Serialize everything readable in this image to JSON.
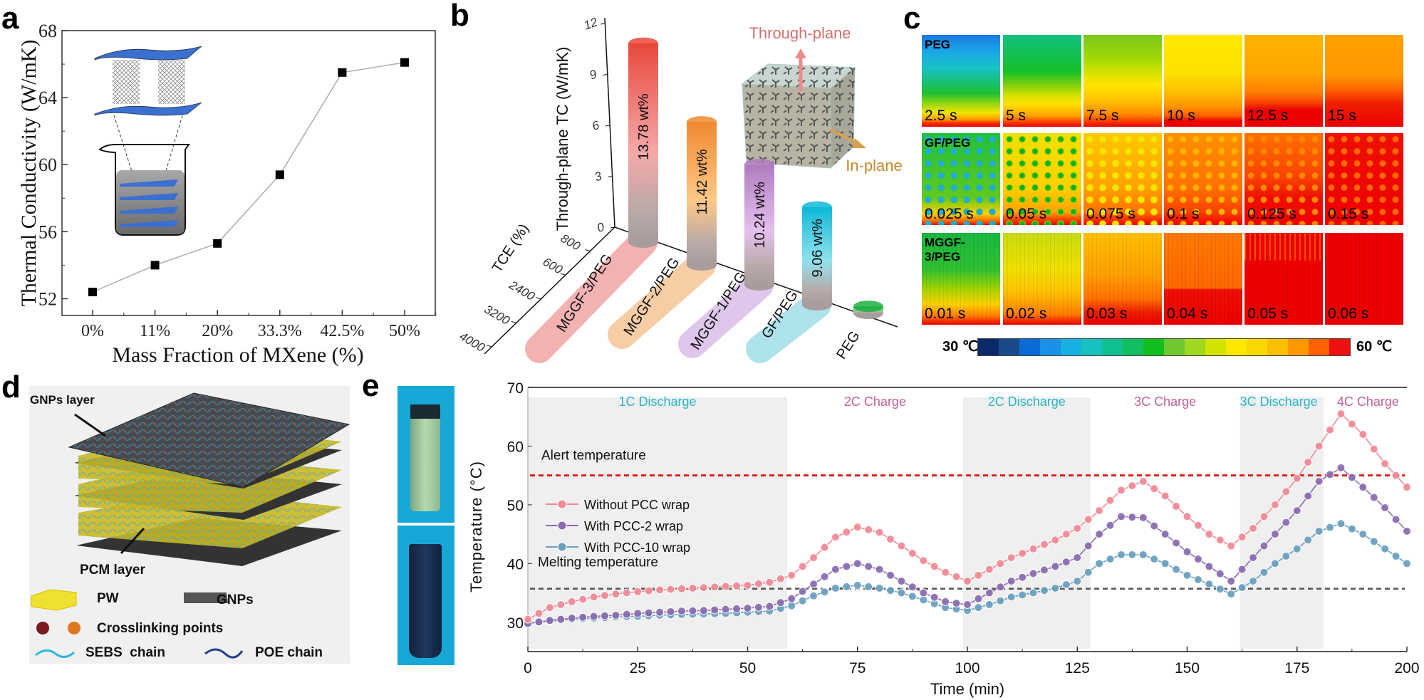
{
  "panel_labels": {
    "a": "a",
    "b": "b",
    "c": "c",
    "d": "d",
    "e": "e"
  },
  "chart_data": [
    {
      "type": "line",
      "panel": "a",
      "title": "",
      "xlabel": "Mass Fraction of MXene (%)",
      "ylabel": "Thermal Conductivity (W/mK)",
      "categories": [
        "0%",
        "11%",
        "20%",
        "33.3%",
        "42.5%",
        "50%"
      ],
      "values": [
        52.4,
        54.0,
        55.3,
        59.4,
        65.5,
        66.1
      ],
      "ylim": [
        51,
        68
      ],
      "yticks": [
        52,
        56,
        60,
        64,
        68
      ],
      "marker": "square",
      "line_color": "#b0b0b0",
      "grid": false
    },
    {
      "type": "bar",
      "panel": "b",
      "style": "3d-cylinder",
      "zlabel": "Through-plane TC (W/mK)",
      "zticks": [
        "0",
        "3",
        "6",
        "9",
        "12"
      ],
      "zlim": [
        0,
        12
      ],
      "tce_label": "TCE (%)",
      "tce_ticks": [
        "800",
        "600",
        "2400",
        "3200",
        "4000"
      ],
      "categories": [
        "MGGF-3/PEG",
        "MGGF-2/PEG",
        "MGGF-1/PEG",
        "GF/PEG",
        "PEG"
      ],
      "values": [
        11.4,
        8.2,
        6.9,
        5.6,
        0.4
      ],
      "bar_labels": [
        "13.78 wt%",
        "11.42 wt%",
        "10.24 wt%",
        "9.06 wt%",
        ""
      ],
      "colors": [
        "#e8483c",
        "#f08a30",
        "#b07cc0",
        "#10b8d8",
        "#20b040"
      ],
      "annotations": {
        "through_plane": "Through-plane",
        "in_plane": "In-plane"
      }
    },
    {
      "type": "line",
      "panel": "e",
      "xlabel": "Time (min)",
      "ylabel": "Temperature (°C)",
      "xlim": [
        0,
        200
      ],
      "ylim": [
        25,
        70
      ],
      "xticks": [
        0,
        25,
        50,
        75,
        100,
        125,
        150,
        175,
        200
      ],
      "yticks": [
        30,
        40,
        50,
        60,
        70
      ],
      "x": [
        0,
        5,
        10,
        15,
        20,
        25,
        30,
        35,
        40,
        45,
        50,
        55,
        60,
        65,
        70,
        75,
        80,
        85,
        90,
        95,
        100,
        105,
        110,
        115,
        120,
        125,
        130,
        135,
        140,
        145,
        150,
        155,
        160,
        165,
        170,
        175,
        180,
        185,
        190,
        195,
        200
      ],
      "series": [
        {
          "name": "Without PCC wrap",
          "color": "#f08a96",
          "values": [
            30.5,
            32.5,
            33.5,
            34.3,
            34.8,
            35.2,
            35.5,
            35.7,
            35.9,
            36.1,
            36.3,
            36.8,
            38,
            41,
            44.5,
            46.2,
            45.3,
            43,
            40.5,
            38.5,
            37,
            39,
            41,
            42.5,
            44,
            46,
            49,
            52.5,
            54,
            51.5,
            48,
            45,
            43,
            46,
            50,
            54.5,
            60,
            65.5,
            62,
            57,
            53
          ]
        },
        {
          "name": "With PCC-2 wrap",
          "color": "#8a6bb0",
          "values": [
            29.8,
            30.3,
            30.7,
            31,
            31.2,
            31.5,
            31.7,
            31.9,
            32,
            32.2,
            32.4,
            32.7,
            34,
            36.5,
            39,
            40,
            39,
            37,
            35,
            33.5,
            33,
            35,
            37,
            38.3,
            39.5,
            41,
            45,
            48,
            47.8,
            45,
            42,
            39.5,
            37,
            41,
            45,
            49,
            54,
            56.3,
            53,
            49.5,
            45.5
          ]
        },
        {
          "name": "With PCC-10 wrap",
          "color": "#6a9fc0",
          "values": [
            29.8,
            30.2,
            30.5,
            30.7,
            30.9,
            31,
            31.2,
            31.3,
            31.4,
            31.5,
            31.7,
            31.9,
            32.8,
            34.5,
            35.8,
            36.3,
            35.8,
            35,
            33.8,
            32.5,
            32,
            33,
            34.3,
            35,
            35.8,
            37,
            40,
            41.5,
            41.5,
            40,
            38,
            36.5,
            34.8,
            37,
            40,
            42.5,
            45.5,
            46.8,
            45,
            42.5,
            40
          ]
        }
      ],
      "hlines": [
        {
          "label": "Alert temperature",
          "y": 55,
          "color": "#e02020"
        },
        {
          "label": "Melting temperature",
          "y": 35.7,
          "color": "#555555"
        }
      ],
      "phases": [
        {
          "label": "1C Discharge",
          "start": 0,
          "end": 59,
          "shaded": true,
          "color": "#27b5c8"
        },
        {
          "label": "2C Charge",
          "start": 59,
          "end": 99,
          "shaded": false,
          "color": "#c0609a"
        },
        {
          "label": "2C Discharge",
          "start": 99,
          "end": 128,
          "shaded": true,
          "color": "#27b5c8"
        },
        {
          "label": "3C Charge",
          "start": 128,
          "end": 162,
          "shaded": false,
          "color": "#c0609a"
        },
        {
          "label": "3C Discharge",
          "start": 162,
          "end": 181,
          "shaded": true,
          "color": "#27b5c8"
        },
        {
          "label": "4C Charge",
          "start": 181,
          "end": 200,
          "shaded": false,
          "color": "#c0609a"
        }
      ],
      "legend": "center-left"
    }
  ],
  "panel_c": {
    "rows": [
      {
        "label": "PEG",
        "times": [
          "2.5 s",
          "5 s",
          "7.5 s",
          "10 s",
          "12.5 s",
          "15 s"
        ]
      },
      {
        "label": "GF/PEG",
        "times": [
          "0.025 s",
          "0.05 s",
          "0.075 s",
          "0.1 s",
          "0.125 s",
          "0.15 s"
        ]
      },
      {
        "label": "MGGF-3/PEG",
        "times": [
          "0.01 s",
          "0.02 s",
          "0.03 s",
          "0.04 s",
          "0.05 s",
          "0.06 s"
        ]
      }
    ],
    "colorbar": {
      "min_label": "30 ℃",
      "max_label": "60 ℃",
      "colors": [
        "#0a2a6a",
        "#1a4a8a",
        "#0a6ad8",
        "#1a90e8",
        "#18b0e0",
        "#18c0c0",
        "#10c090",
        "#10c060",
        "#10c020",
        "#70c830",
        "#a0d820",
        "#d0e400",
        "#ffe800",
        "#f8d800",
        "#f8c000",
        "#ff9800",
        "#ff6000",
        "#ee1010"
      ]
    }
  },
  "panel_d": {
    "gnps_layer": "GNPs layer",
    "pcm_layer": "PCM layer",
    "legend": {
      "pw": "PW",
      "gnps": "GNPs",
      "crosslinking": "Crosslinking points",
      "sebs": "SEBS  chain",
      "poe": "POE chain"
    }
  }
}
